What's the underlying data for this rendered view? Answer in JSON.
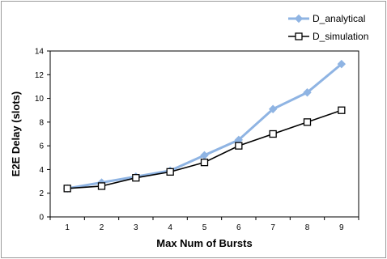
{
  "chart_data": {
    "type": "line",
    "title": "",
    "xlabel": "Max Num of Bursts",
    "ylabel": "E2E Delay (slots)",
    "x": [
      1,
      2,
      3,
      4,
      5,
      6,
      7,
      8,
      9
    ],
    "x_ticks": [
      "1",
      "2",
      "3",
      "4",
      "5",
      "6",
      "7",
      "8",
      "9"
    ],
    "y_ticks": [
      "0",
      "2",
      "4",
      "6",
      "8",
      "10",
      "12",
      "14"
    ],
    "ylim": [
      0,
      14
    ],
    "grid": false,
    "legend_position": "top-right",
    "series": [
      {
        "name": "D_analytical",
        "marker": "diamond",
        "color": "#8fb4e3",
        "values": [
          2.4,
          2.9,
          3.4,
          3.9,
          5.2,
          6.5,
          9.1,
          10.5,
          12.9
        ]
      },
      {
        "name": "D_simulation",
        "marker": "square",
        "color": "#000000",
        "values": [
          2.4,
          2.6,
          3.3,
          3.8,
          4.6,
          6.0,
          7.0,
          8.0,
          9.0
        ]
      }
    ]
  }
}
